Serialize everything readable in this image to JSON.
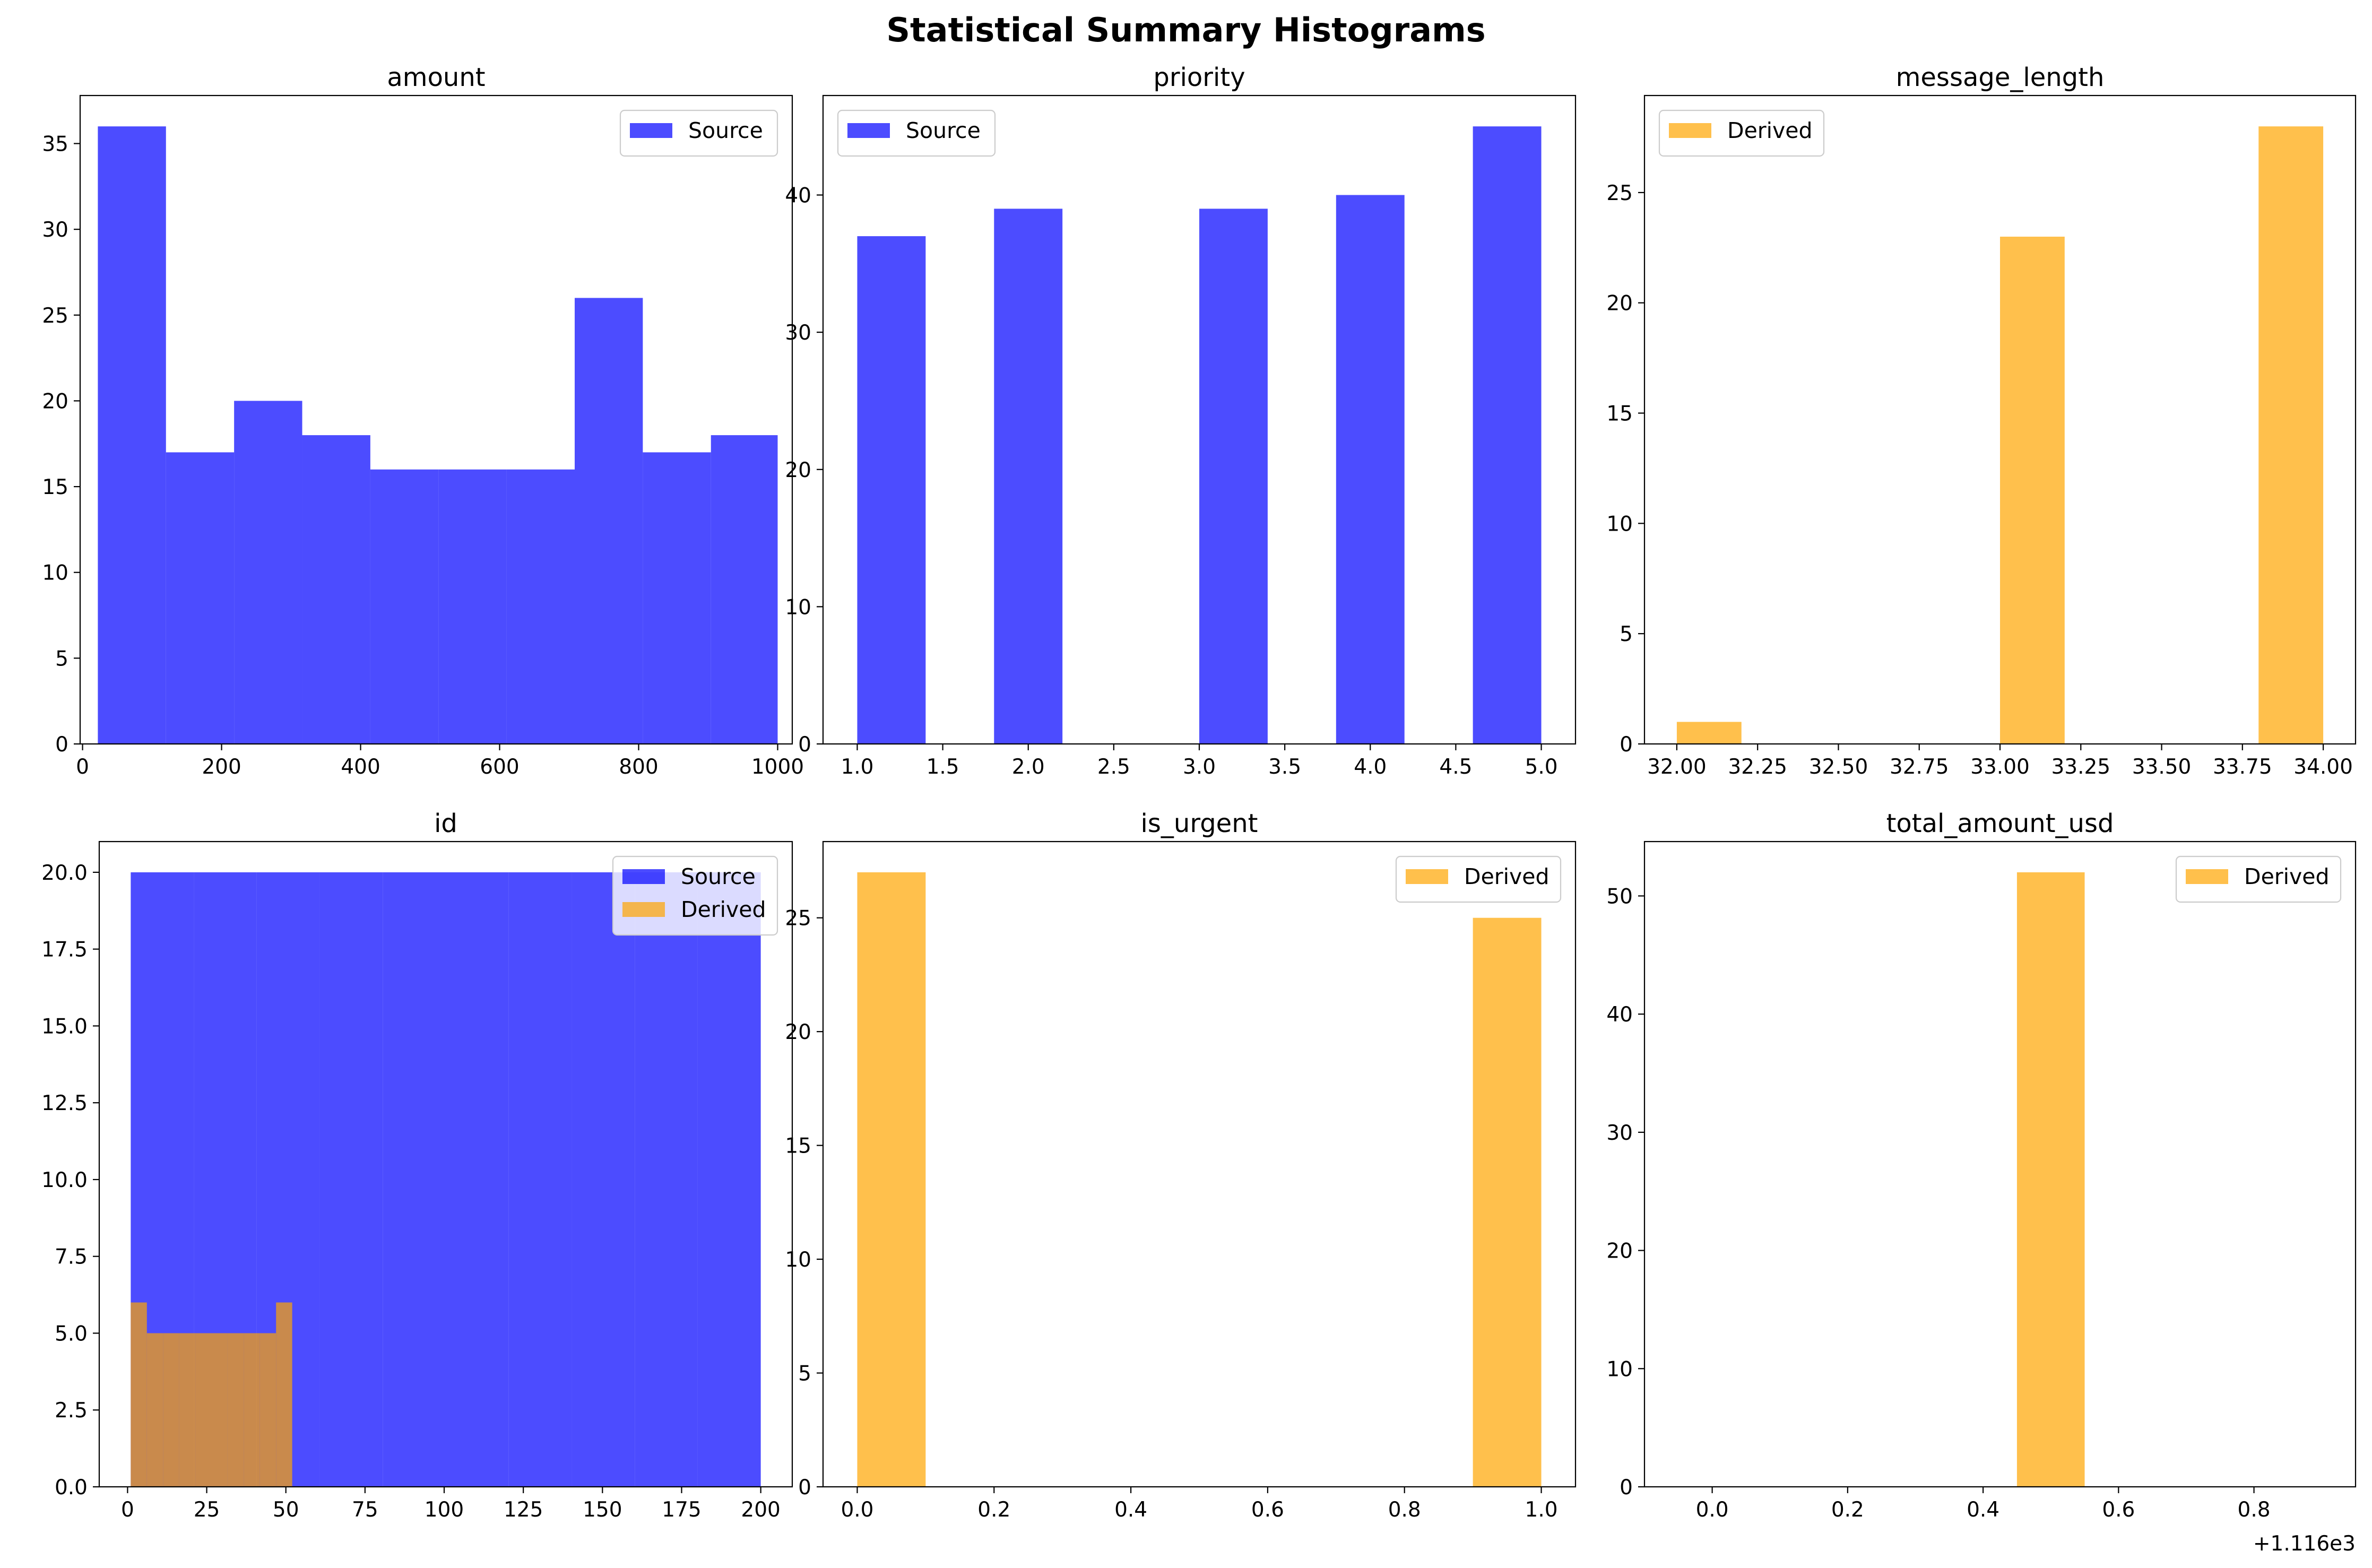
{
  "figure": {
    "title": "Statistical Summary Histograms"
  },
  "colors": {
    "source": "#0000ff",
    "derived": "#ffa500",
    "bar_alpha": 0.7
  },
  "chart_data": [
    {
      "type": "bar",
      "title": "amount",
      "xlim": [
        -3.5,
        1021
      ],
      "ylim": [
        0,
        37.8
      ],
      "xticks": [
        0,
        200,
        400,
        600,
        800,
        1000
      ],
      "xtick_labels": [
        "0",
        "200",
        "400",
        "600",
        "800",
        "1000"
      ],
      "yticks": [
        0,
        5,
        10,
        15,
        20,
        25,
        30,
        35
      ],
      "ytick_labels": [
        "0",
        "5",
        "10",
        "15",
        "20",
        "25",
        "30",
        "35"
      ],
      "legend": "top-right",
      "series": [
        {
          "name": "Source",
          "color_key": "source",
          "bins": [
            [
              22,
              120
            ],
            [
              120,
              218
            ],
            [
              218,
              316
            ],
            [
              316,
              414
            ],
            [
              414,
              512
            ],
            [
              512,
              610
            ],
            [
              610,
              708
            ],
            [
              708,
              806
            ],
            [
              806,
              904
            ],
            [
              904,
              1000
            ]
          ],
          "counts": [
            36,
            17,
            20,
            18,
            16,
            16,
            16,
            26,
            17,
            18
          ]
        }
      ]
    },
    {
      "type": "bar",
      "title": "priority",
      "xlim": [
        0.8,
        5.2
      ],
      "ylim": [
        0,
        47.25
      ],
      "xticks": [
        1.0,
        1.5,
        2.0,
        2.5,
        3.0,
        3.5,
        4.0,
        4.5,
        5.0
      ],
      "xtick_labels": [
        "1.0",
        "1.5",
        "2.0",
        "2.5",
        "3.0",
        "3.5",
        "4.0",
        "4.5",
        "5.0"
      ],
      "yticks": [
        0,
        10,
        20,
        30,
        40
      ],
      "ytick_labels": [
        "0",
        "10",
        "20",
        "30",
        "40"
      ],
      "legend": "top-left",
      "series": [
        {
          "name": "Source",
          "color_key": "source",
          "bins": [
            [
              1.0,
              1.4
            ],
            [
              1.8,
              2.2
            ],
            [
              3.0,
              3.4
            ],
            [
              3.8,
              4.2
            ],
            [
              4.6,
              5.0
            ]
          ],
          "counts": [
            37,
            39,
            39,
            40,
            45
          ]
        }
      ]
    },
    {
      "type": "bar",
      "title": "message_length",
      "xlim": [
        31.9,
        34.1
      ],
      "ylim": [
        0,
        29.4
      ],
      "xticks": [
        32.0,
        32.25,
        32.5,
        32.75,
        33.0,
        33.25,
        33.5,
        33.75,
        34.0
      ],
      "xtick_labels": [
        "32.00",
        "32.25",
        "32.50",
        "32.75",
        "33.00",
        "33.25",
        "33.50",
        "33.75",
        "34.00"
      ],
      "yticks": [
        0,
        5,
        10,
        15,
        20,
        25
      ],
      "ytick_labels": [
        "0",
        "5",
        "10",
        "15",
        "20",
        "25"
      ],
      "legend": "top-left",
      "series": [
        {
          "name": "Derived",
          "color_key": "derived",
          "bins": [
            [
              32.0,
              32.2
            ],
            [
              33.0,
              33.2
            ],
            [
              33.8,
              34.0
            ]
          ],
          "counts": [
            1,
            23,
            28
          ]
        }
      ]
    },
    {
      "type": "bar",
      "title": "id",
      "xlim": [
        -8.95,
        209.95
      ],
      "ylim": [
        0,
        21
      ],
      "xticks": [
        0,
        25,
        50,
        75,
        100,
        125,
        150,
        175,
        200
      ],
      "xtick_labels": [
        "0",
        "25",
        "50",
        "75",
        "100",
        "125",
        "150",
        "175",
        "200"
      ],
      "yticks": [
        0,
        2.5,
        5,
        7.5,
        10,
        12.5,
        15,
        17.5,
        20
      ],
      "ytick_labels": [
        "0.0",
        "2.5",
        "5.0",
        "7.5",
        "10.0",
        "12.5",
        "15.0",
        "17.5",
        "20.0"
      ],
      "legend": "top-right",
      "series": [
        {
          "name": "Source",
          "color_key": "source",
          "bins": [
            [
              1,
              20.9
            ],
            [
              20.9,
              40.8
            ],
            [
              40.8,
              60.7
            ],
            [
              60.7,
              80.6
            ],
            [
              80.6,
              100.5
            ],
            [
              100.5,
              120.4
            ],
            [
              120.4,
              140.3
            ],
            [
              140.3,
              160.2
            ],
            [
              160.2,
              180.1
            ],
            [
              180.1,
              200
            ]
          ],
          "counts": [
            20,
            20,
            20,
            20,
            20,
            20,
            20,
            20,
            20,
            20
          ]
        },
        {
          "name": "Derived",
          "color_key": "derived",
          "bins": [
            [
              1,
              6.1
            ],
            [
              6.1,
              11.2
            ],
            [
              11.2,
              16.3
            ],
            [
              16.3,
              21.4
            ],
            [
              21.4,
              26.5
            ],
            [
              26.5,
              31.6
            ],
            [
              31.6,
              36.7
            ],
            [
              36.7,
              41.8
            ],
            [
              41.8,
              46.9
            ],
            [
              46.9,
              52
            ]
          ],
          "counts": [
            6,
            5,
            5,
            5,
            5,
            5,
            5,
            5,
            5,
            6
          ]
        }
      ]
    },
    {
      "type": "bar",
      "title": "is_urgent",
      "xlim": [
        -0.05,
        1.05
      ],
      "ylim": [
        0,
        28.35
      ],
      "xticks": [
        0.0,
        0.2,
        0.4,
        0.6,
        0.8,
        1.0
      ],
      "xtick_labels": [
        "0.0",
        "0.2",
        "0.4",
        "0.6",
        "0.8",
        "1.0"
      ],
      "yticks": [
        0,
        5,
        10,
        15,
        20,
        25
      ],
      "ytick_labels": [
        "0",
        "5",
        "10",
        "15",
        "20",
        "25"
      ],
      "legend": "top-right",
      "series": [
        {
          "name": "Derived",
          "color_key": "derived",
          "bins": [
            [
              0.0,
              0.1
            ],
            [
              0.9,
              1.0
            ]
          ],
          "counts": [
            27,
            25
          ]
        }
      ]
    },
    {
      "type": "bar",
      "title": "total_amount_usd",
      "xlim": [
        -0.1,
        0.95
      ],
      "ylim": [
        0,
        54.6
      ],
      "xticks": [
        0.0,
        0.2,
        0.4,
        0.6,
        0.8
      ],
      "xtick_labels": [
        "0.0",
        "0.2",
        "0.4",
        "0.6",
        "0.8"
      ],
      "yticks": [
        0,
        10,
        20,
        30,
        40,
        50
      ],
      "ytick_labels": [
        "0",
        "10",
        "20",
        "30",
        "40",
        "50"
      ],
      "x_offset_label": "+1.116e3",
      "legend": "top-right",
      "series": [
        {
          "name": "Derived",
          "color_key": "derived",
          "bins": [
            [
              0.45,
              0.55
            ]
          ],
          "counts": [
            52
          ]
        }
      ]
    }
  ]
}
